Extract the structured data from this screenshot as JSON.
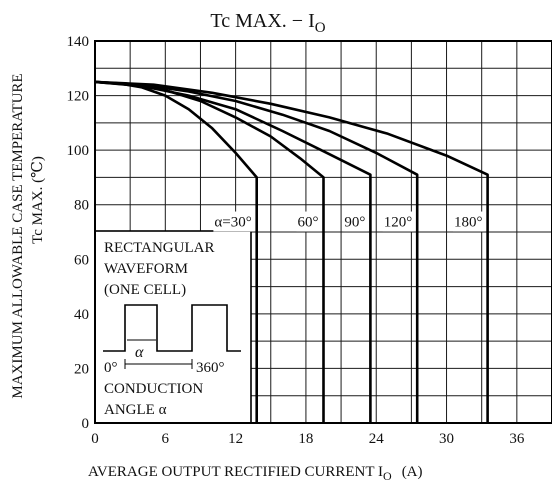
{
  "chart_data": {
    "type": "line",
    "title": "Tc MAX. − I",
    "title_subscript": "O",
    "xlabel": "AVERAGE OUTPUT RECTIFIED CURRENT  I",
    "xlabel_subscript": "O",
    "xunit": "(A)",
    "ylabel_line1": "MAXIMUM ALLOWABLE CASE TEMPERATURE",
    "ylabel_line2": "Tc MAX.  (℃)",
    "xlim": [
      0,
      39
    ],
    "ylim": [
      0,
      140
    ],
    "x_ticks": [
      "0",
      "6",
      "12",
      "18",
      "24",
      "30",
      "36"
    ],
    "y_ticks": [
      "0",
      "20",
      "40",
      "60",
      "80",
      "100",
      "120",
      "140"
    ],
    "grid": true,
    "series": [
      {
        "name": "α=30°",
        "points": [
          [
            0,
            125
          ],
          [
            2,
            124.5
          ],
          [
            4,
            123
          ],
          [
            6,
            120
          ],
          [
            8,
            115
          ],
          [
            10,
            108
          ],
          [
            12,
            99
          ],
          [
            13.8,
            90
          ],
          [
            13.8,
            0
          ]
        ]
      },
      {
        "name": "60°",
        "points": [
          [
            0,
            125
          ],
          [
            3,
            124
          ],
          [
            6,
            122
          ],
          [
            9,
            118
          ],
          [
            12,
            112
          ],
          [
            15,
            105
          ],
          [
            17.5,
            97
          ],
          [
            19.5,
            90
          ],
          [
            19.5,
            0
          ]
        ]
      },
      {
        "name": "90°",
        "points": [
          [
            0,
            125
          ],
          [
            4,
            123.5
          ],
          [
            8,
            120
          ],
          [
            12,
            115
          ],
          [
            16,
            107
          ],
          [
            20,
            98.5
          ],
          [
            23.5,
            91
          ],
          [
            23.5,
            0
          ]
        ]
      },
      {
        "name": "120°",
        "points": [
          [
            0,
            125
          ],
          [
            4,
            124
          ],
          [
            8,
            121.5
          ],
          [
            12,
            118
          ],
          [
            16,
            113
          ],
          [
            20,
            107
          ],
          [
            24,
            99
          ],
          [
            27.5,
            91
          ],
          [
            27.5,
            0
          ]
        ]
      },
      {
        "name": "180°",
        "points": [
          [
            0,
            125
          ],
          [
            5,
            124
          ],
          [
            10,
            121
          ],
          [
            15,
            117
          ],
          [
            20,
            112
          ],
          [
            25,
            106
          ],
          [
            30,
            98
          ],
          [
            33.5,
            91
          ],
          [
            33.5,
            0
          ]
        ]
      }
    ]
  },
  "inset": {
    "line1": "RECTANGULAR",
    "line2": "WAVEFORM",
    "line3": "(ONE CELL)",
    "start_label": "0°",
    "alpha_label": "α",
    "end_label": "360°",
    "cond_line1": "CONDUCTION",
    "cond_line2": "ANGLE α"
  }
}
